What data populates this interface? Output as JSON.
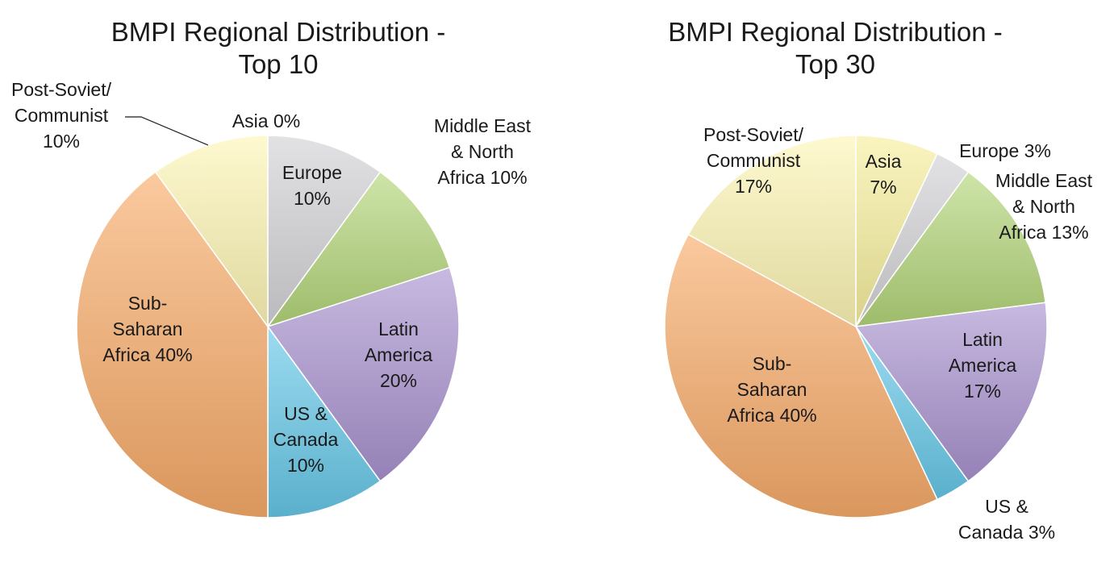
{
  "colors": {
    "asia": "#f7ef9e",
    "europe": "#d3d3d7",
    "mena": "#b4d67a",
    "latin": "#a993cf",
    "us": "#66c8e8",
    "ssa": "#f8ac6a",
    "soviet": "#fdf5b5"
  },
  "chart_data": [
    {
      "type": "pie",
      "title_lines": [
        "BMPI Regional Distribution -",
        "Top 10"
      ],
      "slices": [
        {
          "key": "asia",
          "name": "Asia",
          "value": 0,
          "label_lines": [
            "Asia 0%"
          ]
        },
        {
          "key": "europe",
          "name": "Europe",
          "value": 10,
          "label_lines": [
            "Europe",
            "10%"
          ]
        },
        {
          "key": "mena",
          "name": "Middle East & North Africa",
          "value": 10,
          "label_lines": [
            "Middle East",
            "& North",
            "Africa 10%"
          ]
        },
        {
          "key": "latin",
          "name": "Latin America",
          "value": 20,
          "label_lines": [
            "Latin",
            "America",
            "20%"
          ]
        },
        {
          "key": "us",
          "name": "US & Canada",
          "value": 10,
          "label_lines": [
            "US &",
            "Canada",
            "10%"
          ]
        },
        {
          "key": "ssa",
          "name": "Sub-Saharan Africa",
          "value": 40,
          "label_lines": [
            "Sub-",
            "Saharan",
            "Africa 40%"
          ]
        },
        {
          "key": "soviet",
          "name": "Post-Soviet/ Communist",
          "value": 10,
          "label_lines": [
            "Post-Soviet/",
            "Communist",
            "10%"
          ]
        }
      ]
    },
    {
      "type": "pie",
      "title_lines": [
        "BMPI Regional Distribution -",
        "Top 30"
      ],
      "slices": [
        {
          "key": "asia",
          "name": "Asia",
          "value": 7,
          "label_lines": [
            "Asia",
            "7%"
          ]
        },
        {
          "key": "europe",
          "name": "Europe",
          "value": 3,
          "label_lines": [
            "Europe 3%"
          ]
        },
        {
          "key": "mena",
          "name": "Middle East & North Africa",
          "value": 13,
          "label_lines": [
            "Middle East",
            "& North",
            "Africa 13%"
          ]
        },
        {
          "key": "latin",
          "name": "Latin America",
          "value": 17,
          "label_lines": [
            "Latin",
            "America",
            "17%"
          ]
        },
        {
          "key": "us",
          "name": "US & Canada",
          "value": 3,
          "label_lines": [
            "US &",
            "Canada 3%"
          ]
        },
        {
          "key": "ssa",
          "name": "Sub-Saharan Africa",
          "value": 40,
          "label_lines": [
            "Sub-",
            "Saharan",
            "Africa 40%"
          ]
        },
        {
          "key": "soviet",
          "name": "Post-Soviet/ Communist",
          "value": 17,
          "label_lines": [
            "Post-Soviet/",
            "Communist",
            "17%"
          ]
        }
      ]
    }
  ]
}
